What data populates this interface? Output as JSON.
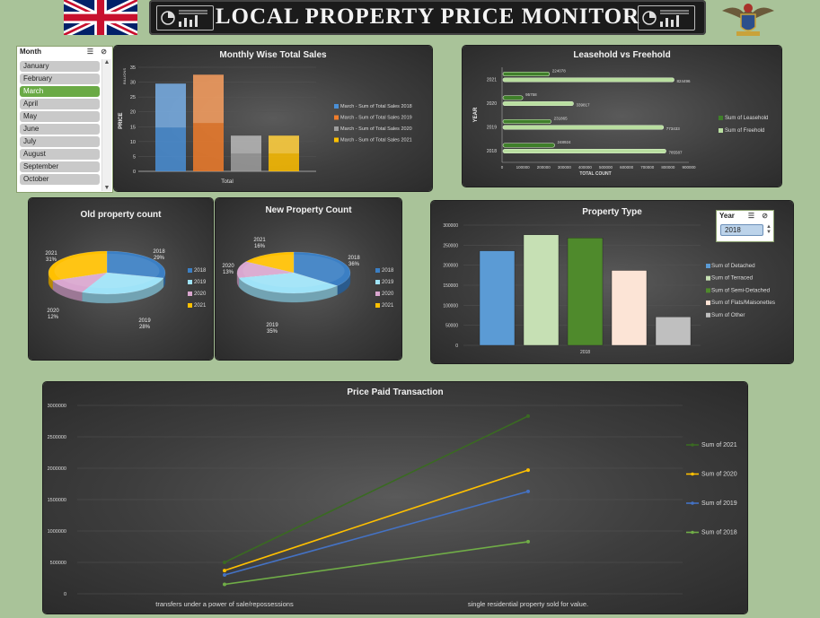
{
  "header": {
    "title": "LOCAL PROPERTY PRICE MONITOR"
  },
  "colors": {
    "page_bg": "#a9c399",
    "panel_bg": "#3d3d3d",
    "accent_green": "#6aaa45",
    "series_2018": "#4a8fd6",
    "series_2019": "#f07d2c",
    "series_2020": "#9e9e9e",
    "series_2021": "#ffc000"
  },
  "month_slicer": {
    "title": "Month",
    "items": [
      "January",
      "February",
      "March",
      "April",
      "May",
      "June",
      "July",
      "August",
      "September",
      "October"
    ],
    "selected": "March"
  },
  "year_slicer": {
    "title": "Year",
    "selected": "2018"
  },
  "chart_data": [
    {
      "id": "monthly_sales",
      "type": "bar",
      "title": "Monthly Wise Total Sales",
      "ylabel": "PRICE",
      "yunit_label": "BILLIONS",
      "categories": [
        "Total"
      ],
      "ylim": [
        0,
        35
      ],
      "yticks": [
        "0",
        "5",
        "10",
        "15",
        "20",
        "25",
        "30",
        "35"
      ],
      "series": [
        {
          "name": "March - Sum of Total Sales 2018",
          "values": [
            29.5
          ],
          "color": "#4a8fd6"
        },
        {
          "name": "March - Sum of Total Sales 2019",
          "values": [
            32.5
          ],
          "color": "#f07d2c"
        },
        {
          "name": "March - Sum of Total Sales 2020",
          "values": [
            12
          ],
          "color": "#9e9e9e"
        },
        {
          "name": "March - Sum of Total Sales 2021",
          "values": [
            12
          ],
          "color": "#ffc000"
        }
      ]
    },
    {
      "id": "lease_free",
      "type": "bar",
      "orientation": "horizontal",
      "title": "Leasehold vs Freehold",
      "ylabel": "YEAR",
      "xlabel": "TOTAL COUNT",
      "xlim": [
        0,
        900000
      ],
      "xticks": [
        "0",
        "100000",
        "200000",
        "300000",
        "400000",
        "500000",
        "600000",
        "700000",
        "800000",
        "900000"
      ],
      "categories": [
        "2021",
        "2020",
        "2019",
        "2018"
      ],
      "series": [
        {
          "name": "Sum of Leasehold",
          "values": [
            224078,
            95758,
            231865,
            248924
          ],
          "labels": [
            "224078",
            "95758",
            "231865",
            "248924"
          ],
          "color": "#3f7f2a"
        },
        {
          "name": "Sum of Freehold",
          "values": [
            824496,
            339817,
            773433,
            785587
          ],
          "labels": [
            "824496",
            "339817",
            "773433",
            "785587"
          ],
          "color": "#b9dea0"
        }
      ]
    },
    {
      "id": "old_property",
      "type": "pie",
      "title": "Old property count",
      "labels": [
        "2018",
        "2019",
        "2020",
        "2021"
      ],
      "values": [
        29,
        28,
        12,
        31
      ],
      "data_labels": [
        "29%",
        "28%",
        "12%",
        "31%"
      ],
      "colors": [
        "#3b7fc4",
        "#9fe3f8",
        "#d9a6cf",
        "#ffc000"
      ]
    },
    {
      "id": "new_property",
      "type": "pie",
      "title": "New Property Count",
      "labels": [
        "2018",
        "2019",
        "2020",
        "2021"
      ],
      "values": [
        36,
        35,
        13,
        16
      ],
      "data_labels": [
        "36%",
        "35%",
        "13%",
        "16%"
      ],
      "colors": [
        "#3b7fc4",
        "#9fe3f8",
        "#d9a6cf",
        "#ffc000"
      ]
    },
    {
      "id": "property_type",
      "type": "bar",
      "title": "Property Type",
      "categories": [
        "2018"
      ],
      "ylim": [
        0,
        300000
      ],
      "yticks": [
        "0",
        "50000",
        "100000",
        "150000",
        "200000",
        "250000",
        "300000"
      ],
      "series": [
        {
          "name": "Sum of  Detached",
          "values": [
            236000
          ],
          "color": "#5b9bd5"
        },
        {
          "name": "Sum of Terraced",
          "values": [
            276000
          ],
          "color": "#c6e0b4"
        },
        {
          "name": "Sum of Semi-Detached",
          "values": [
            268000
          ],
          "color": "#4f8a2c"
        },
        {
          "name": "Sum of Flats/Maisonettes",
          "values": [
            187000
          ],
          "color": "#fce4d6"
        },
        {
          "name": "Sum of Other",
          "values": [
            71000
          ],
          "color": "#bfbfbf"
        }
      ]
    },
    {
      "id": "price_paid",
      "type": "line",
      "title": "Price Paid Transaction",
      "categories": [
        "transfers under a power of sale/repossessions",
        "single residential property sold for value."
      ],
      "ylim": [
        0,
        3000000
      ],
      "yticks": [
        "0",
        "500000",
        "1000000",
        "1500000",
        "2000000",
        "2500000",
        "3000000"
      ],
      "series": [
        {
          "name": "Sum of 2021",
          "values": [
            500000,
            2830000
          ],
          "color": "#3a6a22"
        },
        {
          "name": "Sum of 2020",
          "values": [
            370000,
            1970000
          ],
          "color": "#ffc000"
        },
        {
          "name": "Sum of 2019",
          "values": [
            300000,
            1630000
          ],
          "color": "#4472c4"
        },
        {
          "name": "Sum of 2018",
          "values": [
            150000,
            830000
          ],
          "color": "#70ad47"
        }
      ]
    }
  ]
}
